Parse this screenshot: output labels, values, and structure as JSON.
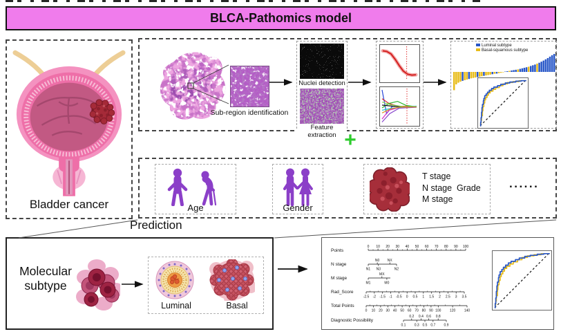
{
  "header": {
    "title": "BLCA-Pathomics model",
    "bg_color": "#F07CEC"
  },
  "bladder_panel": {
    "label": "Bladder cancer"
  },
  "pathomics_panel": {
    "subregion_label": "Sub-region identification",
    "nuclei_label": "Nuclei detection",
    "feature_label": "Feature extraction"
  },
  "plus": {
    "symbol": "+",
    "color": "#2ECC2E"
  },
  "clinical_panel": {
    "age_label": "Age",
    "gender_label": "Gender",
    "stages": [
      "T stage",
      "N stage",
      "M stage"
    ],
    "grade_label": "Grade",
    "ellipsis": "......"
  },
  "prediction_label": "Prediction",
  "subtype_panel": {
    "title": "Molecular subtype",
    "title_line1": "Molecular",
    "title_line2": "subtype",
    "luminal_label": "Luminal",
    "basal_label": "Basal"
  },
  "palette": {
    "banner_pink": "#F07CEC",
    "person_purple": "#8B3FC8",
    "tumor_red": "#A52A38",
    "plus_green": "#2ECC2E",
    "luminal_blue": "#2857C8",
    "basal_yellow": "#E8BC18"
  },
  "nomogram": {
    "rows": [
      {
        "id": "points",
        "label": "Points",
        "label_side": "above",
        "ticks": [
          [
            "0",
            0
          ],
          [
            "10",
            0.1
          ],
          [
            "20",
            0.2
          ],
          [
            "30",
            0.3
          ],
          [
            "40",
            0.4
          ],
          [
            "50",
            0.5
          ],
          [
            "60",
            0.6
          ],
          [
            "70",
            0.7
          ],
          [
            "80",
            0.8
          ],
          [
            "90",
            0.9
          ],
          [
            "100",
            1
          ]
        ]
      },
      {
        "id": "n_stage",
        "label": "N stage",
        "above": [
          [
            "N0",
            0.32
          ],
          [
            "NX",
            0.76
          ]
        ],
        "below": [
          [
            "N1",
            0
          ],
          [
            "N3",
            0.36
          ],
          [
            "N2",
            1
          ]
        ]
      },
      {
        "id": "m_stage",
        "label": "M stage",
        "above": [
          [
            "MX",
            0.62
          ]
        ],
        "below": [
          [
            "M1",
            0
          ],
          [
            "M0",
            0.84
          ]
        ]
      },
      {
        "id": "rad_score",
        "label": "Rad_Score",
        "label_side": "below",
        "ticks": [
          [
            "-2.5",
            0
          ],
          [
            "-2",
            0.0833
          ],
          [
            "-1.5",
            0.1667
          ],
          [
            "-1",
            0.25
          ],
          [
            "-0.5",
            0.3333
          ],
          [
            "0",
            0.4167
          ],
          [
            "0.5",
            0.5
          ],
          [
            "1",
            0.5833
          ],
          [
            "1.5",
            0.6667
          ],
          [
            "2",
            0.75
          ],
          [
            "2.5",
            0.8333
          ],
          [
            "3",
            0.9167
          ],
          [
            "3.5",
            1
          ]
        ]
      },
      {
        "id": "total_points",
        "label": "Total Points",
        "label_side": "below",
        "ticks": [
          [
            "0",
            0
          ],
          [
            "10",
            0.0714
          ],
          [
            "20",
            0.1429
          ],
          [
            "30",
            0.2143
          ],
          [
            "40",
            0.2857
          ],
          [
            "50",
            0.3571
          ],
          [
            "60",
            0.4286
          ],
          [
            "70",
            0.5
          ],
          [
            "80",
            0.5714
          ],
          [
            "90",
            0.6429
          ],
          [
            "100",
            0.7143
          ],
          [
            "120",
            0.8571
          ],
          [
            "140",
            1
          ]
        ]
      },
      {
        "id": "diagnostic",
        "label": "Diagnostic Possibility",
        "above": [
          [
            "0.2",
            0.19
          ],
          [
            "0.4",
            0.41
          ],
          [
            "0.6",
            0.59
          ],
          [
            "0.8",
            0.81
          ]
        ],
        "below": [
          [
            "0.1",
            0
          ],
          [
            "0.3",
            0.31
          ],
          [
            "0.5",
            0.5
          ],
          [
            "0.7",
            0.69
          ],
          [
            "0.9",
            1
          ]
        ]
      }
    ]
  },
  "chart_data": [
    {
      "id": "risk-waterfall",
      "type": "bar",
      "title": "",
      "legend": [
        {
          "label": "Luminal subtype",
          "color": "#2857C8",
          "code": "L"
        },
        {
          "label": "Basal-squamous subtype",
          "color": "#E8BC18",
          "code": "B"
        }
      ],
      "values": [
        -0.88,
        -0.6,
        -0.52,
        -0.47,
        -0.43,
        -0.4,
        -0.37,
        -0.34,
        -0.31,
        -0.29,
        -0.27,
        -0.25,
        -0.23,
        -0.21,
        -0.19,
        -0.17,
        -0.15,
        -0.13,
        -0.11,
        -0.09,
        -0.08,
        -0.06,
        -0.04,
        -0.02,
        0.02,
        0.04,
        0.06,
        0.08,
        0.1,
        0.12,
        0.14,
        0.17,
        0.2,
        0.23,
        0.26,
        0.29,
        0.33,
        0.37,
        0.41,
        0.46,
        0.51,
        0.57,
        0.63,
        0.7,
        0.77,
        0.85,
        0.93,
        1.0
      ],
      "subtype": [
        "B",
        "B",
        "B",
        "B",
        "L",
        "B",
        "B",
        "L",
        "B",
        "B",
        "B",
        "L",
        "B",
        "B",
        "L",
        "B",
        "B",
        "B",
        "L",
        "B",
        "L",
        "B",
        "B",
        "B",
        "L",
        "L",
        "B",
        "L",
        "L",
        "L",
        "B",
        "L",
        "L",
        "L",
        "L",
        "B",
        "L",
        "L",
        "L",
        "B",
        "L",
        "L",
        "L",
        "L",
        "L",
        "L",
        "L",
        "L"
      ]
    },
    {
      "id": "roc-curve",
      "type": "line",
      "diagonal": true,
      "series": [
        {
          "name": "luminal",
          "color": "#2857C8",
          "points": [
            [
              0,
              0
            ],
            [
              0.01,
              0.08
            ],
            [
              0.02,
              0.18
            ],
            [
              0.03,
              0.3
            ],
            [
              0.04,
              0.4
            ],
            [
              0.05,
              0.47
            ],
            [
              0.07,
              0.55
            ],
            [
              0.08,
              0.6
            ],
            [
              0.1,
              0.66
            ],
            [
              0.13,
              0.7
            ],
            [
              0.16,
              0.74
            ],
            [
              0.2,
              0.78
            ],
            [
              0.25,
              0.82
            ],
            [
              0.3,
              0.85
            ],
            [
              0.38,
              0.88
            ],
            [
              0.45,
              0.91
            ],
            [
              0.55,
              0.94
            ],
            [
              0.65,
              0.96
            ],
            [
              0.78,
              0.98
            ],
            [
              0.9,
              0.99
            ],
            [
              1,
              1
            ]
          ]
        },
        {
          "name": "basal-squamous",
          "color": "#E8BC18",
          "points": [
            [
              0,
              0
            ],
            [
              0.01,
              0.05
            ],
            [
              0.02,
              0.12
            ],
            [
              0.03,
              0.22
            ],
            [
              0.05,
              0.33
            ],
            [
              0.06,
              0.42
            ],
            [
              0.08,
              0.5
            ],
            [
              0.1,
              0.57
            ],
            [
              0.12,
              0.62
            ],
            [
              0.15,
              0.67
            ],
            [
              0.18,
              0.72
            ],
            [
              0.22,
              0.76
            ],
            [
              0.28,
              0.8
            ],
            [
              0.34,
              0.84
            ],
            [
              0.42,
              0.88
            ],
            [
              0.5,
              0.92
            ],
            [
              0.6,
              0.95
            ],
            [
              0.72,
              0.97
            ],
            [
              0.85,
              0.99
            ],
            [
              1,
              1
            ]
          ]
        }
      ]
    },
    {
      "id": "lasso-cv",
      "type": "line",
      "vline_x": 0.72,
      "series": [
        {
          "name": "cv-error",
          "color": "#D42020",
          "points": [
            [
              0,
              0.1
            ],
            [
              0.12,
              0.12
            ],
            [
              0.25,
              0.2
            ],
            [
              0.38,
              0.38
            ],
            [
              0.5,
              0.58
            ],
            [
              0.62,
              0.75
            ],
            [
              0.75,
              0.85
            ],
            [
              0.88,
              0.88
            ],
            [
              1,
              0.87
            ]
          ]
        }
      ]
    },
    {
      "id": "lasso-paths",
      "type": "line",
      "vline_x": 0.72,
      "series": [
        {
          "color": "#2444D8",
          "points": [
            [
              0,
              0.02
            ],
            [
              0.13,
              0.72
            ],
            [
              0.3,
              0.5
            ],
            [
              0.55,
              0.52
            ],
            [
              1,
              0.52
            ]
          ]
        },
        {
          "color": "#D82828",
          "points": [
            [
              0,
              0.28
            ],
            [
              0.2,
              0.42
            ],
            [
              0.45,
              0.5
            ],
            [
              1,
              0.51
            ]
          ]
        },
        {
          "color": "#28B428",
          "points": [
            [
              0,
              0.55
            ],
            [
              0.2,
              0.42
            ],
            [
              0.45,
              0.36
            ],
            [
              0.7,
              0.48
            ],
            [
              1,
              0.52
            ]
          ]
        },
        {
          "color": "#D828C8",
          "points": [
            [
              0,
              0.88
            ],
            [
              0.2,
              0.62
            ],
            [
              0.45,
              0.55
            ],
            [
              1,
              0.52
            ]
          ]
        },
        {
          "color": "#8844CC",
          "points": [
            [
              0,
              0.97
            ],
            [
              0.22,
              0.72
            ],
            [
              0.5,
              0.56
            ],
            [
              1,
              0.53
            ]
          ]
        },
        {
          "color": "#111111",
          "points": [
            [
              0,
              0.47
            ],
            [
              0.3,
              0.5
            ],
            [
              0.6,
              0.52
            ],
            [
              1,
              0.52
            ]
          ]
        },
        {
          "color": "#22C8C8",
          "points": [
            [
              0,
              0.62
            ],
            [
              0.3,
              0.56
            ],
            [
              0.6,
              0.53
            ],
            [
              1,
              0.5
            ]
          ]
        },
        {
          "color": "#88D858",
          "points": [
            [
              0,
              0.38
            ],
            [
              0.25,
              0.46
            ],
            [
              0.6,
              0.51
            ],
            [
              1,
              0.52
            ]
          ]
        },
        {
          "color": "#E09020",
          "points": [
            [
              0,
              0.7
            ],
            [
              0.25,
              0.58
            ],
            [
              0.5,
              0.53
            ],
            [
              1,
              0.52
            ]
          ]
        }
      ]
    }
  ]
}
